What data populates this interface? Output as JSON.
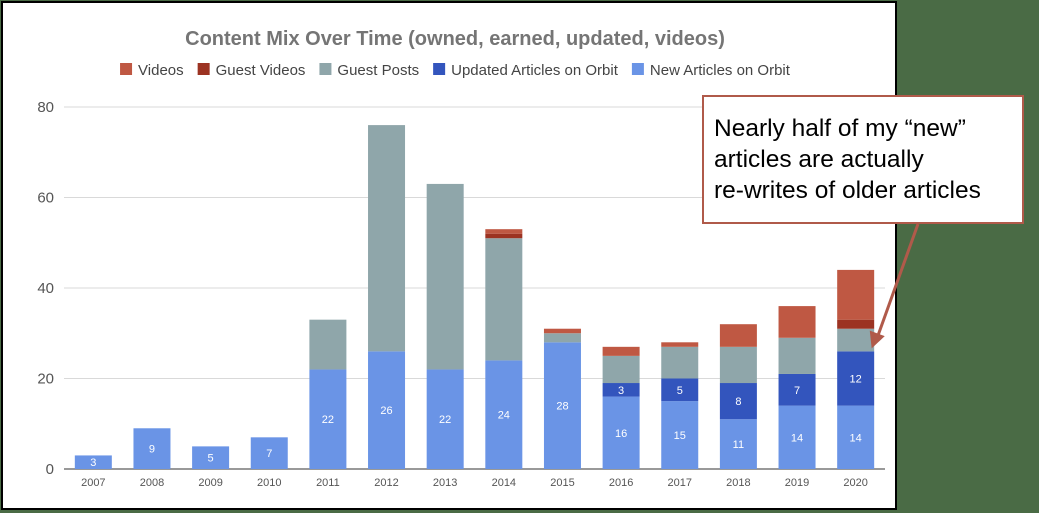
{
  "chart_data": {
    "type": "bar",
    "stacked": true,
    "title": "Content Mix Over Time (owned, earned, updated, videos)",
    "xlabel": "",
    "ylabel": "",
    "ylim": [
      0,
      80
    ],
    "yticks": [
      0,
      20,
      40,
      60,
      80
    ],
    "grid": true,
    "legend_position": "top",
    "categories": [
      "2007",
      "2008",
      "2009",
      "2010",
      "2011",
      "2012",
      "2013",
      "2014",
      "2015",
      "2016",
      "2017",
      "2018",
      "2019",
      "2020"
    ],
    "series": [
      {
        "name": "New Articles on Orbit",
        "color": "#6a94e6",
        "values": [
          3,
          9,
          5,
          7,
          22,
          26,
          22,
          24,
          28,
          16,
          15,
          11,
          14,
          14
        ],
        "labels": [
          "3",
          "9",
          "5",
          "7",
          "22",
          "26",
          "22",
          "24",
          "28",
          "16",
          "15",
          "11",
          "14",
          "14"
        ]
      },
      {
        "name": "Updated Articles on Orbit",
        "color": "#3355bd",
        "values": [
          0,
          0,
          0,
          0,
          0,
          0,
          0,
          0,
          0,
          3,
          5,
          8,
          7,
          12
        ],
        "labels": [
          "",
          "",
          "",
          "",
          "",
          "",
          "",
          "",
          "",
          "3",
          "5",
          "8",
          "7",
          "12"
        ]
      },
      {
        "name": "Guest Posts",
        "color": "#8fa6aa",
        "values": [
          0,
          0,
          0,
          0,
          11,
          50,
          41,
          27,
          2,
          6,
          7,
          8,
          8,
          5
        ],
        "labels": [
          "",
          "",
          "",
          "",
          "",
          "",
          "",
          "",
          "",
          "",
          "",
          "",
          "",
          ""
        ]
      },
      {
        "name": "Guest Videos",
        "color": "#9c3322",
        "values": [
          0,
          0,
          0,
          0,
          0,
          0,
          0,
          1,
          0,
          0,
          0,
          0,
          0,
          2
        ],
        "labels": [
          "",
          "",
          "",
          "",
          "",
          "",
          "",
          "",
          "",
          "",
          "",
          "",
          "",
          ""
        ]
      },
      {
        "name": "Videos",
        "color": "#bf5843",
        "values": [
          0,
          0,
          0,
          0,
          0,
          0,
          0,
          1,
          1,
          2,
          1,
          5,
          7,
          11
        ],
        "labels": [
          "",
          "",
          "",
          "",
          "",
          "",
          "",
          "",
          "",
          "",
          "",
          "",
          "",
          ""
        ]
      }
    ],
    "legend_order": [
      "Videos",
      "Guest Videos",
      "Guest Posts",
      "Updated Articles on Orbit",
      "New Articles on Orbit"
    ],
    "annotation": {
      "lines": [
        "Nearly half of my “new”",
        "articles are actually",
        "re-writes of older articles"
      ],
      "points_to": "2020",
      "border_color": "#b05a4a"
    }
  }
}
